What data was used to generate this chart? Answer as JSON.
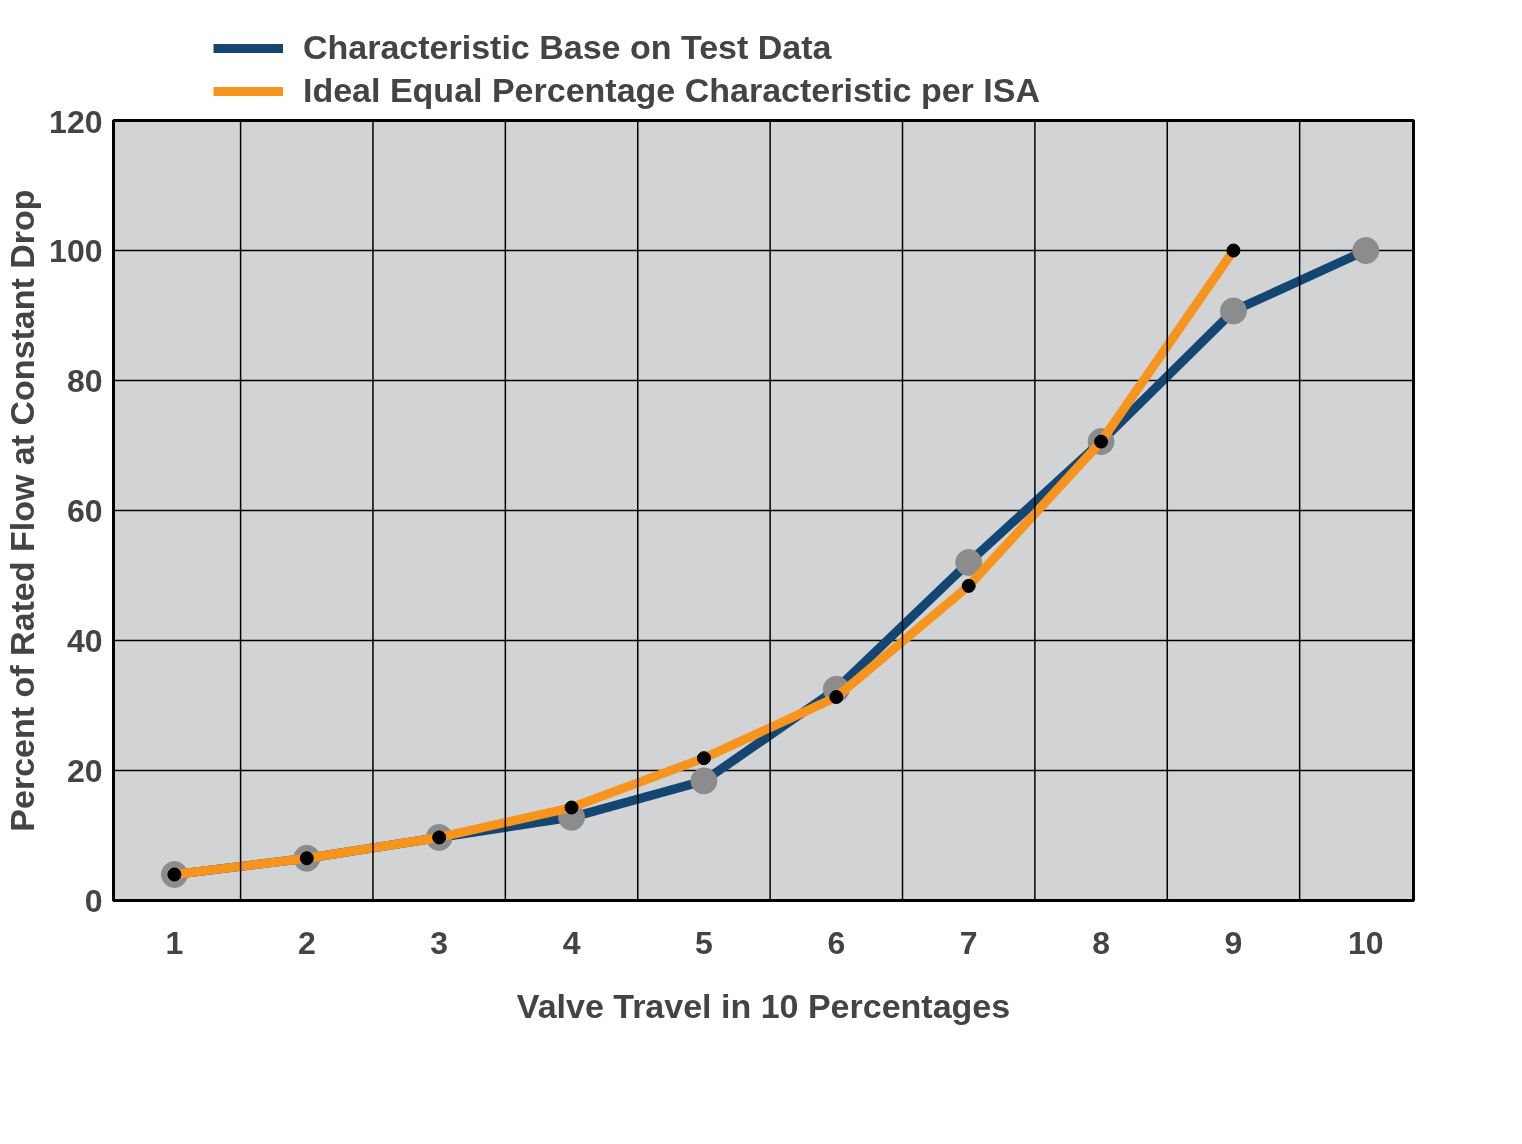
{
  "chart_data": {
    "type": "line",
    "xlabel": "Valve Travel in 10 Percentages",
    "ylabel": "Percent of Rated Flow at Constant Drop",
    "categories": [
      "1",
      "2",
      "3",
      "4",
      "5",
      "6",
      "7",
      "8",
      "9",
      "10"
    ],
    "series": [
      {
        "name": "Characteristic Base on Test Data",
        "color": "#134673",
        "values": [
          4,
          6.5,
          9.7,
          12.8,
          18.4,
          32.5,
          52,
          70.6,
          90.7,
          100
        ]
      },
      {
        "name": "Ideal Equal Percentage Characteristic per ISA",
        "color": "#f7941d",
        "values": [
          4,
          6.5,
          9.7,
          14.3,
          21.9,
          31.3,
          48.4,
          70.6,
          100,
          null
        ]
      }
    ],
    "ylim": [
      0,
      120
    ],
    "yticks": [
      0,
      20,
      40,
      60,
      80,
      100,
      120
    ],
    "grid": true,
    "legend": "top",
    "marker": "circle",
    "line_style": "solid"
  }
}
